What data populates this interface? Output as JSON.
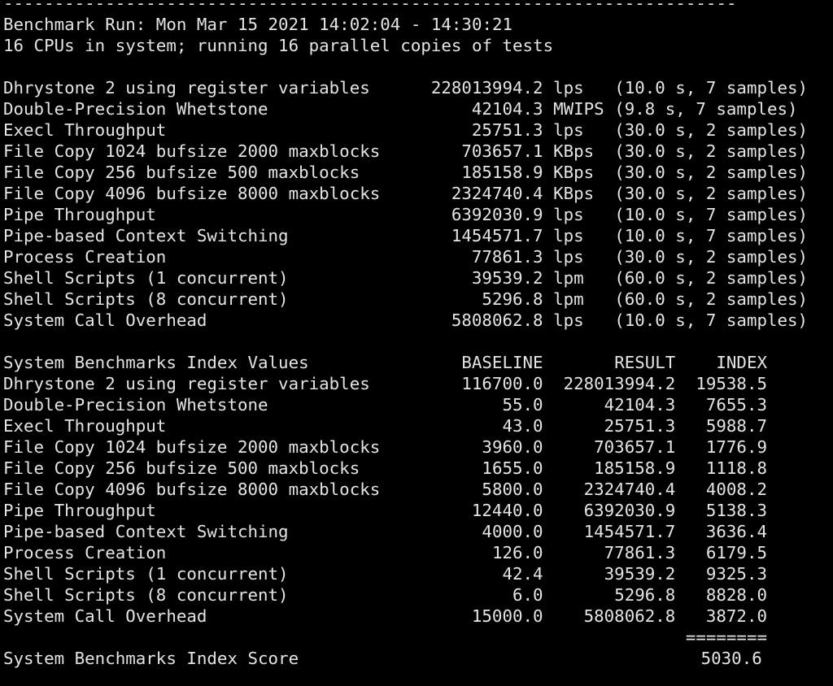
{
  "separator": "------------------------------------------------------------------------",
  "header": {
    "run_line": "Benchmark Run: Mon Mar 15 2021 14:02:04 - 14:30:21",
    "cpu_line": "16 CPUs in system; running 16 parallel copies of tests"
  },
  "results": [
    {
      "name": "Dhrystone 2 using register variables",
      "value": "228013994.2",
      "unit": "lps",
      "timing": "(10.0 s, 7 samples)"
    },
    {
      "name": "Double-Precision Whetstone",
      "value": "42104.3",
      "unit": "MWIPS",
      "timing": "(9.8 s, 7 samples)"
    },
    {
      "name": "Execl Throughput",
      "value": "25751.3",
      "unit": "lps",
      "timing": "(30.0 s, 2 samples)"
    },
    {
      "name": "File Copy 1024 bufsize 2000 maxblocks",
      "value": "703657.1",
      "unit": "KBps",
      "timing": "(30.0 s, 2 samples)"
    },
    {
      "name": "File Copy 256 bufsize 500 maxblocks",
      "value": "185158.9",
      "unit": "KBps",
      "timing": "(30.0 s, 2 samples)"
    },
    {
      "name": "File Copy 4096 bufsize 8000 maxblocks",
      "value": "2324740.4",
      "unit": "KBps",
      "timing": "(30.0 s, 2 samples)"
    },
    {
      "name": "Pipe Throughput",
      "value": "6392030.9",
      "unit": "lps",
      "timing": "(10.0 s, 7 samples)"
    },
    {
      "name": "Pipe-based Context Switching",
      "value": "1454571.7",
      "unit": "lps",
      "timing": "(10.0 s, 7 samples)"
    },
    {
      "name": "Process Creation",
      "value": "77861.3",
      "unit": "lps",
      "timing": "(30.0 s, 2 samples)"
    },
    {
      "name": "Shell Scripts (1 concurrent)",
      "value": "39539.2",
      "unit": "lpm",
      "timing": "(60.0 s, 2 samples)"
    },
    {
      "name": "Shell Scripts (8 concurrent)",
      "value": "5296.8",
      "unit": "lpm",
      "timing": "(60.0 s, 2 samples)"
    },
    {
      "name": "System Call Overhead",
      "value": "5808062.8",
      "unit": "lps",
      "timing": "(10.0 s, 7 samples)"
    }
  ],
  "index": {
    "title": "System Benchmarks Index Values",
    "columns": [
      "BASELINE",
      "RESULT",
      "INDEX"
    ],
    "rows": [
      {
        "name": "Dhrystone 2 using register variables",
        "baseline": "116700.0",
        "result": "228013994.2",
        "index": "19538.5"
      },
      {
        "name": "Double-Precision Whetstone",
        "baseline": "55.0",
        "result": "42104.3",
        "index": "7655.3"
      },
      {
        "name": "Execl Throughput",
        "baseline": "43.0",
        "result": "25751.3",
        "index": "5988.7"
      },
      {
        "name": "File Copy 1024 bufsize 2000 maxblocks",
        "baseline": "3960.0",
        "result": "703657.1",
        "index": "1776.9"
      },
      {
        "name": "File Copy 256 bufsize 500 maxblocks",
        "baseline": "1655.0",
        "result": "185158.9",
        "index": "1118.8"
      },
      {
        "name": "File Copy 4096 bufsize 8000 maxblocks",
        "baseline": "5800.0",
        "result": "2324740.4",
        "index": "4008.2"
      },
      {
        "name": "Pipe Throughput",
        "baseline": "12440.0",
        "result": "6392030.9",
        "index": "5138.3"
      },
      {
        "name": "Pipe-based Context Switching",
        "baseline": "4000.0",
        "result": "1454571.7",
        "index": "3636.4"
      },
      {
        "name": "Process Creation",
        "baseline": "126.0",
        "result": "77861.3",
        "index": "6179.5"
      },
      {
        "name": "Shell Scripts (1 concurrent)",
        "baseline": "42.4",
        "result": "39539.2",
        "index": "9325.3"
      },
      {
        "name": "Shell Scripts (8 concurrent)",
        "baseline": "6.0",
        "result": "5296.8",
        "index": "8828.0"
      },
      {
        "name": "System Call Overhead",
        "baseline": "15000.0",
        "result": "5808062.8",
        "index": "3872.0"
      }
    ],
    "rule": "========",
    "score_label": "System Benchmarks Index Score",
    "score": "5030.6"
  }
}
